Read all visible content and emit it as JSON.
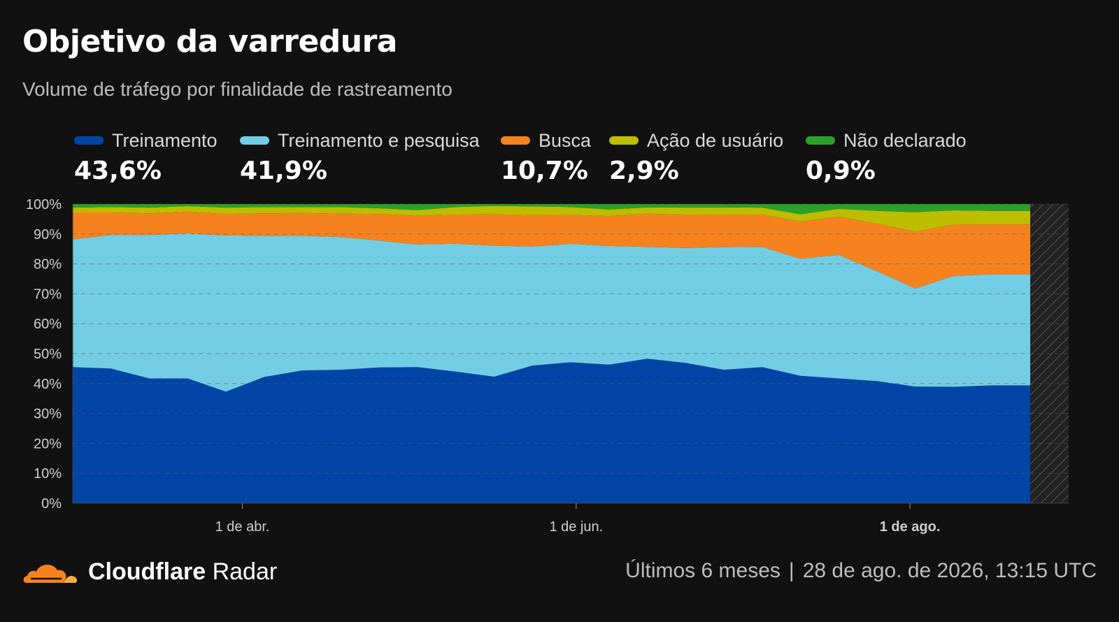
{
  "header": {
    "title": "Objetivo da varredura",
    "subtitle": "Volume de tráfego por finalidade de rastreamento"
  },
  "legend": [
    {
      "label": "Treinamento",
      "value": "43,6%",
      "color": "#0045a5"
    },
    {
      "label": "Treinamento e pesquisa",
      "value": "41,9%",
      "color": "#72cde4"
    },
    {
      "label": "Busca",
      "value": "10,7%",
      "color": "#f6821f"
    },
    {
      "label": "Ação de usuário",
      "value": "2,9%",
      "color": "#bdbd00"
    },
    {
      "label": "Não declarado",
      "value": "0,9%",
      "color": "#2ba12b"
    }
  ],
  "footer": {
    "brand_bold": "Cloudflare",
    "brand_light": "Radar",
    "period": "Últimos 6 meses",
    "separator": "|",
    "timestamp": "28 de ago. de 2026, 13:15 UTC"
  },
  "chart_data": {
    "type": "area",
    "stacked": true,
    "x": [
      "2026-03-01",
      "2026-03-08",
      "2026-03-15",
      "2026-03-22",
      "2026-03-29",
      "2026-04-05",
      "2026-04-12",
      "2026-04-19",
      "2026-04-26",
      "2026-05-03",
      "2026-05-10",
      "2026-05-17",
      "2026-05-24",
      "2026-05-31",
      "2026-06-07",
      "2026-06-14",
      "2026-06-21",
      "2026-06-28",
      "2026-07-05",
      "2026-07-12",
      "2026-07-19",
      "2026-07-26",
      "2026-08-02",
      "2026-08-09",
      "2026-08-16",
      "2026-08-23"
    ],
    "x_ticks": [
      {
        "date": "2026-04-01",
        "label": "1 de abr.",
        "bold": false
      },
      {
        "date": "2026-06-01",
        "label": "1 de jun.",
        "bold": false
      },
      {
        "date": "2026-08-01",
        "label": "1 de ago.",
        "bold": true
      }
    ],
    "y_ticks": [
      "0%",
      "10%",
      "20%",
      "30%",
      "40%",
      "50%",
      "60%",
      "70%",
      "80%",
      "90%",
      "100%"
    ],
    "ylim": [
      0,
      100
    ],
    "incomplete_from": "2026-08-23",
    "series": [
      {
        "name": "Treinamento",
        "color": "#0045a5",
        "values": [
          45.5,
          45.0,
          41.7,
          41.7,
          37.3,
          42.2,
          44.4,
          44.6,
          45.4,
          45.5,
          44.0,
          42.3,
          46.0,
          47.1,
          46.3,
          48.3,
          46.9,
          44.6,
          45.5,
          42.6,
          41.7,
          40.8,
          39.0,
          38.9,
          39.4,
          39.4
        ]
      },
      {
        "name": "Treinamento e pesquisa",
        "color": "#72cde4",
        "values": [
          42.7,
          44.7,
          48.0,
          48.5,
          52.2,
          47.2,
          45.0,
          44.4,
          42.4,
          41.0,
          42.7,
          43.8,
          39.8,
          39.6,
          39.7,
          37.4,
          38.4,
          41.0,
          40.2,
          39.1,
          41.3,
          36.7,
          32.8,
          37.1,
          37.1,
          37.1
        ]
      },
      {
        "name": "Busca",
        "color": "#f6821f",
        "values": [
          9.0,
          7.5,
          7.2,
          7.2,
          7.2,
          7.5,
          7.6,
          7.8,
          8.9,
          9.6,
          9.8,
          10.5,
          10.5,
          9.7,
          10.0,
          11.1,
          11.2,
          10.8,
          10.8,
          12.4,
          12.8,
          15.9,
          19.0,
          17.1,
          16.7,
          16.7
        ]
      },
      {
        "name": "Ação de usuário",
        "color": "#bdbd00",
        "values": [
          1.6,
          1.8,
          1.9,
          1.9,
          2.1,
          2.1,
          2.0,
          2.2,
          1.9,
          1.9,
          2.5,
          2.8,
          2.9,
          2.6,
          2.2,
          2.1,
          2.4,
          2.5,
          2.3,
          2.5,
          2.6,
          4.3,
          6.5,
          4.8,
          4.5,
          4.5
        ]
      },
      {
        "name": "Não declarado",
        "color": "#2ba12b",
        "values": [
          1.2,
          1.0,
          1.2,
          0.7,
          1.2,
          1.0,
          1.0,
          1.0,
          1.4,
          2.0,
          1.0,
          0.6,
          0.8,
          1.0,
          1.8,
          1.1,
          1.1,
          1.1,
          1.2,
          3.4,
          1.6,
          2.3,
          2.7,
          2.1,
          2.3,
          2.3
        ]
      }
    ]
  }
}
